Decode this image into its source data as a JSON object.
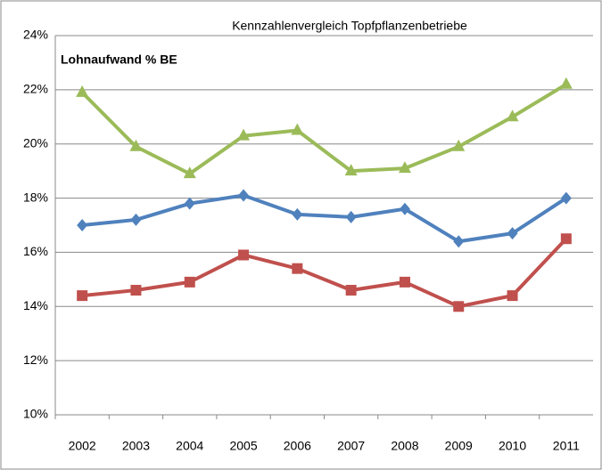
{
  "chart_data": {
    "type": "line",
    "title": "Kennzahlenvergleich Topfpflanzenbetriebe",
    "annotation": "Lohnaufwand % BE",
    "categories": [
      "2002",
      "2003",
      "2004",
      "2005",
      "2006",
      "2007",
      "2008",
      "2009",
      "2010",
      "2011"
    ],
    "series": [
      {
        "color": "#9bbb59",
        "marker": "triangle",
        "values": [
          21.9,
          19.9,
          18.9,
          20.3,
          20.5,
          19.0,
          19.1,
          19.9,
          21.0,
          22.2
        ]
      },
      {
        "color": "#4f81bd",
        "marker": "diamond",
        "values": [
          17.0,
          17.2,
          17.8,
          18.1,
          17.4,
          17.3,
          17.6,
          16.4,
          16.7,
          18.0
        ]
      },
      {
        "color": "#c0504d",
        "marker": "square",
        "values": [
          14.4,
          14.6,
          14.9,
          15.9,
          15.4,
          14.6,
          14.9,
          14.0,
          14.4,
          16.5
        ]
      }
    ],
    "ylim": [
      10,
      24
    ],
    "yticks": [
      {
        "value": 10,
        "label": "10%"
      },
      {
        "value": 12,
        "label": "12%"
      },
      {
        "value": 14,
        "label": "14%"
      },
      {
        "value": 16,
        "label": "16%"
      },
      {
        "value": 18,
        "label": "18%"
      },
      {
        "value": 20,
        "label": "20%"
      },
      {
        "value": 22,
        "label": "22%"
      },
      {
        "value": 24,
        "label": "24%"
      }
    ],
    "grid": true
  }
}
